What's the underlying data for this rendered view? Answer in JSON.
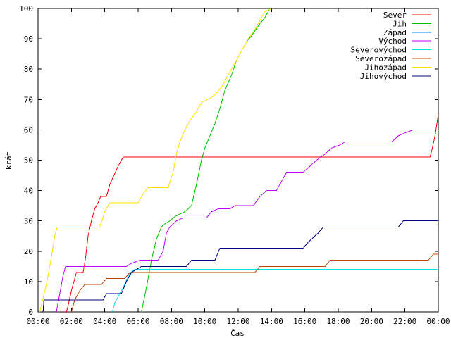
{
  "chart_data": {
    "type": "line",
    "title": "",
    "xlabel": "Čas",
    "ylabel": "krát",
    "xlim": [
      0,
      24
    ],
    "ylim": [
      0,
      100
    ],
    "grid": false,
    "legend_position": "top-right",
    "x_ticks": [
      "00:00",
      "02:00",
      "04:00",
      "06:00",
      "08:00",
      "10:00",
      "12:00",
      "14:00",
      "16:00",
      "18:00",
      "20:00",
      "22:00",
      "00:00"
    ],
    "y_ticks": [
      "0",
      "10",
      "20",
      "30",
      "40",
      "50",
      "60",
      "70",
      "80",
      "90",
      "100"
    ],
    "series": [
      {
        "name": "Sever",
        "color": "#ff0000",
        "points": [
          [
            1.7,
            0
          ],
          [
            1.8,
            2
          ],
          [
            2.0,
            7
          ],
          [
            2.2,
            11
          ],
          [
            2.3,
            13
          ],
          [
            2.7,
            13
          ],
          [
            2.85,
            18
          ],
          [
            3.0,
            25
          ],
          [
            3.2,
            30
          ],
          [
            3.4,
            34
          ],
          [
            3.6,
            36
          ],
          [
            3.75,
            38
          ],
          [
            4.1,
            38
          ],
          [
            4.3,
            42
          ],
          [
            4.55,
            45
          ],
          [
            4.8,
            48
          ],
          [
            5.0,
            50
          ],
          [
            5.1,
            51
          ],
          [
            23.5,
            51
          ],
          [
            23.6,
            53
          ],
          [
            23.8,
            58
          ],
          [
            24.0,
            65
          ]
        ]
      },
      {
        "name": "Jih",
        "color": "#00c000",
        "points": [
          [
            6.2,
            0
          ],
          [
            6.5,
            8
          ],
          [
            6.8,
            17
          ],
          [
            7.1,
            24
          ],
          [
            7.4,
            28
          ],
          [
            7.6,
            29
          ],
          [
            7.9,
            30
          ],
          [
            8.1,
            31
          ],
          [
            8.4,
            32
          ],
          [
            8.8,
            33
          ],
          [
            9.2,
            35
          ],
          [
            9.5,
            42
          ],
          [
            9.8,
            50
          ],
          [
            10.0,
            54
          ],
          [
            10.3,
            58
          ],
          [
            10.6,
            62
          ],
          [
            10.9,
            67
          ],
          [
            11.2,
            73
          ],
          [
            11.6,
            78
          ],
          [
            11.9,
            83
          ],
          [
            12.2,
            86
          ],
          [
            12.5,
            89
          ],
          [
            12.8,
            91
          ],
          [
            13.3,
            95
          ],
          [
            13.6,
            97
          ],
          [
            13.9,
            100
          ]
        ]
      },
      {
        "name": "Západ",
        "color": "#0080ff",
        "points": []
      },
      {
        "name": "Východ",
        "color": "#c000ff",
        "points": [
          [
            1.1,
            0
          ],
          [
            1.3,
            6
          ],
          [
            1.5,
            12
          ],
          [
            1.65,
            15
          ],
          [
            5.3,
            15
          ],
          [
            5.6,
            16
          ],
          [
            6.1,
            17
          ],
          [
            7.2,
            17
          ],
          [
            7.5,
            20
          ],
          [
            7.7,
            26
          ],
          [
            7.9,
            28
          ],
          [
            8.3,
            30
          ],
          [
            8.7,
            31
          ],
          [
            10.1,
            31
          ],
          [
            10.4,
            33
          ],
          [
            10.8,
            34
          ],
          [
            11.5,
            34
          ],
          [
            11.8,
            35
          ],
          [
            12.9,
            35
          ],
          [
            13.3,
            38
          ],
          [
            13.7,
            40
          ],
          [
            14.3,
            40
          ],
          [
            14.6,
            43
          ],
          [
            14.9,
            46
          ],
          [
            15.9,
            46
          ],
          [
            16.3,
            48
          ],
          [
            16.7,
            50
          ],
          [
            17.2,
            52
          ],
          [
            17.6,
            54
          ],
          [
            18.1,
            55
          ],
          [
            18.4,
            56
          ],
          [
            21.2,
            56
          ],
          [
            21.6,
            58
          ],
          [
            22.0,
            59
          ],
          [
            22.5,
            60
          ],
          [
            24.0,
            60
          ]
        ]
      },
      {
        "name": "Severovýchod",
        "color": "#00e0e0",
        "points": [
          [
            4.45,
            0
          ],
          [
            4.6,
            3
          ],
          [
            4.9,
            6
          ],
          [
            5.1,
            8
          ],
          [
            5.35,
            11
          ],
          [
            5.55,
            13
          ],
          [
            5.8,
            14
          ],
          [
            24.0,
            14
          ]
        ]
      },
      {
        "name": "Severozápad",
        "color": "#c04000",
        "points": [
          [
            2.0,
            0
          ],
          [
            2.2,
            4
          ],
          [
            2.5,
            7
          ],
          [
            2.8,
            9
          ],
          [
            3.8,
            9
          ],
          [
            4.1,
            11
          ],
          [
            5.2,
            11
          ],
          [
            5.5,
            13
          ],
          [
            13.0,
            13
          ],
          [
            13.3,
            15
          ],
          [
            17.2,
            15
          ],
          [
            17.5,
            17
          ],
          [
            23.4,
            17
          ],
          [
            23.7,
            19
          ],
          [
            24.0,
            19
          ]
        ]
      },
      {
        "name": "Jihozápad",
        "color": "#ffe000",
        "points": [
          [
            0.1,
            0
          ],
          [
            0.5,
            9
          ],
          [
            0.8,
            18
          ],
          [
            1.0,
            25
          ],
          [
            1.15,
            28
          ],
          [
            3.7,
            28
          ],
          [
            4.0,
            33
          ],
          [
            4.3,
            36
          ],
          [
            6.0,
            36
          ],
          [
            6.3,
            39
          ],
          [
            6.6,
            41
          ],
          [
            7.8,
            41
          ],
          [
            8.1,
            46
          ],
          [
            8.3,
            52
          ],
          [
            8.5,
            56
          ],
          [
            8.8,
            60
          ],
          [
            9.1,
            63
          ],
          [
            9.5,
            66
          ],
          [
            9.8,
            69
          ],
          [
            10.5,
            71
          ],
          [
            11.0,
            74
          ],
          [
            11.4,
            78
          ],
          [
            11.8,
            82
          ],
          [
            12.2,
            86
          ],
          [
            12.6,
            90
          ],
          [
            13.0,
            93
          ],
          [
            13.3,
            96
          ],
          [
            13.6,
            99
          ],
          [
            14.0,
            100
          ]
        ]
      },
      {
        "name": "Jihovýchod",
        "color": "#000080",
        "points": [
          [
            0.3,
            0
          ],
          [
            0.35,
            4
          ],
          [
            3.9,
            4
          ],
          [
            4.1,
            6
          ],
          [
            5.0,
            6
          ],
          [
            5.3,
            10
          ],
          [
            5.6,
            13
          ],
          [
            5.9,
            14
          ],
          [
            6.2,
            15
          ],
          [
            8.9,
            15
          ],
          [
            9.2,
            17
          ],
          [
            10.6,
            17
          ],
          [
            10.9,
            21
          ],
          [
            15.9,
            21
          ],
          [
            16.2,
            23
          ],
          [
            16.8,
            26
          ],
          [
            17.1,
            28
          ],
          [
            21.6,
            28
          ],
          [
            21.9,
            30
          ],
          [
            24.0,
            30
          ]
        ]
      }
    ]
  }
}
